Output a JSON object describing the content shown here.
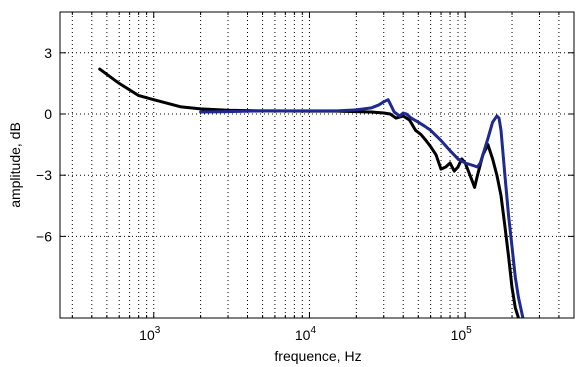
{
  "chart_data": {
    "type": "line",
    "title": "",
    "xlabel": "frequence, Hz",
    "ylabel": "amplitude, dB",
    "x_scale": "log",
    "xlim": [
      250,
      500000
    ],
    "ylim": [
      -10,
      5
    ],
    "grid": true,
    "x_ticks": [
      {
        "value": 1000,
        "base": "10",
        "exp": "3"
      },
      {
        "value": 10000,
        "base": "10",
        "exp": "4"
      },
      {
        "value": 100000,
        "base": "10",
        "exp": "5"
      }
    ],
    "y_ticks": [
      {
        "value": 3,
        "label": "3"
      },
      {
        "value": 0,
        "label": "0"
      },
      {
        "value": -3,
        "label": "−3"
      },
      {
        "value": -6,
        "label": "−6"
      }
    ],
    "series": [
      {
        "color": "#000000",
        "width": 3,
        "points": [
          [
            450,
            2.2
          ],
          [
            600,
            1.5
          ],
          [
            800,
            0.9
          ],
          [
            1000,
            0.7
          ],
          [
            1500,
            0.35
          ],
          [
            2000,
            0.25
          ],
          [
            3000,
            0.18
          ],
          [
            5000,
            0.15
          ],
          [
            10000,
            0.14
          ],
          [
            15000,
            0.14
          ],
          [
            20000,
            0.12
          ],
          [
            25000,
            0.1
          ],
          [
            30000,
            0.05
          ],
          [
            33000,
            0.0
          ],
          [
            36000,
            -0.2
          ],
          [
            40000,
            -0.1
          ],
          [
            44000,
            -0.3
          ],
          [
            48000,
            -0.8
          ],
          [
            52000,
            -1.0
          ],
          [
            56000,
            -1.3
          ],
          [
            60000,
            -1.6
          ],
          [
            65000,
            -2.0
          ],
          [
            70000,
            -2.7
          ],
          [
            75000,
            -2.6
          ],
          [
            80000,
            -2.4
          ],
          [
            85000,
            -2.8
          ],
          [
            90000,
            -2.6
          ],
          [
            95000,
            -2.2
          ],
          [
            100000,
            -2.4
          ],
          [
            110000,
            -3.2
          ],
          [
            115000,
            -3.6
          ],
          [
            120000,
            -3.0
          ],
          [
            130000,
            -2.0
          ],
          [
            140000,
            -1.5
          ],
          [
            150000,
            -2.2
          ],
          [
            160000,
            -3.0
          ],
          [
            170000,
            -4.0
          ],
          [
            180000,
            -5.5
          ],
          [
            190000,
            -7.0
          ],
          [
            200000,
            -8.5
          ],
          [
            210000,
            -9.5
          ],
          [
            220000,
            -10.0
          ]
        ]
      },
      {
        "color": "#1f2a8c",
        "width": 3,
        "points": [
          [
            2000,
            0.1
          ],
          [
            3000,
            0.12
          ],
          [
            5000,
            0.15
          ],
          [
            8000,
            0.15
          ],
          [
            10000,
            0.15
          ],
          [
            15000,
            0.15
          ],
          [
            20000,
            0.2
          ],
          [
            25000,
            0.3
          ],
          [
            28000,
            0.45
          ],
          [
            30000,
            0.6
          ],
          [
            32000,
            0.7
          ],
          [
            33000,
            0.5
          ],
          [
            35000,
            0.1
          ],
          [
            38000,
            -0.1
          ],
          [
            40000,
            0.05
          ],
          [
            42000,
            0.0
          ],
          [
            45000,
            -0.2
          ],
          [
            50000,
            -0.4
          ],
          [
            55000,
            -0.6
          ],
          [
            60000,
            -0.8
          ],
          [
            70000,
            -1.3
          ],
          [
            80000,
            -1.8
          ],
          [
            90000,
            -2.2
          ],
          [
            100000,
            -2.4
          ],
          [
            110000,
            -2.5
          ],
          [
            120000,
            -2.6
          ],
          [
            125000,
            -2.4
          ],
          [
            130000,
            -2.0
          ],
          [
            140000,
            -1.2
          ],
          [
            150000,
            -0.4
          ],
          [
            160000,
            -0.1
          ],
          [
            165000,
            -0.2
          ],
          [
            170000,
            -0.8
          ],
          [
            180000,
            -3.0
          ],
          [
            190000,
            -5.0
          ],
          [
            200000,
            -6.5
          ],
          [
            210000,
            -8.0
          ],
          [
            220000,
            -9.0
          ],
          [
            235000,
            -10.0
          ]
        ]
      }
    ]
  }
}
